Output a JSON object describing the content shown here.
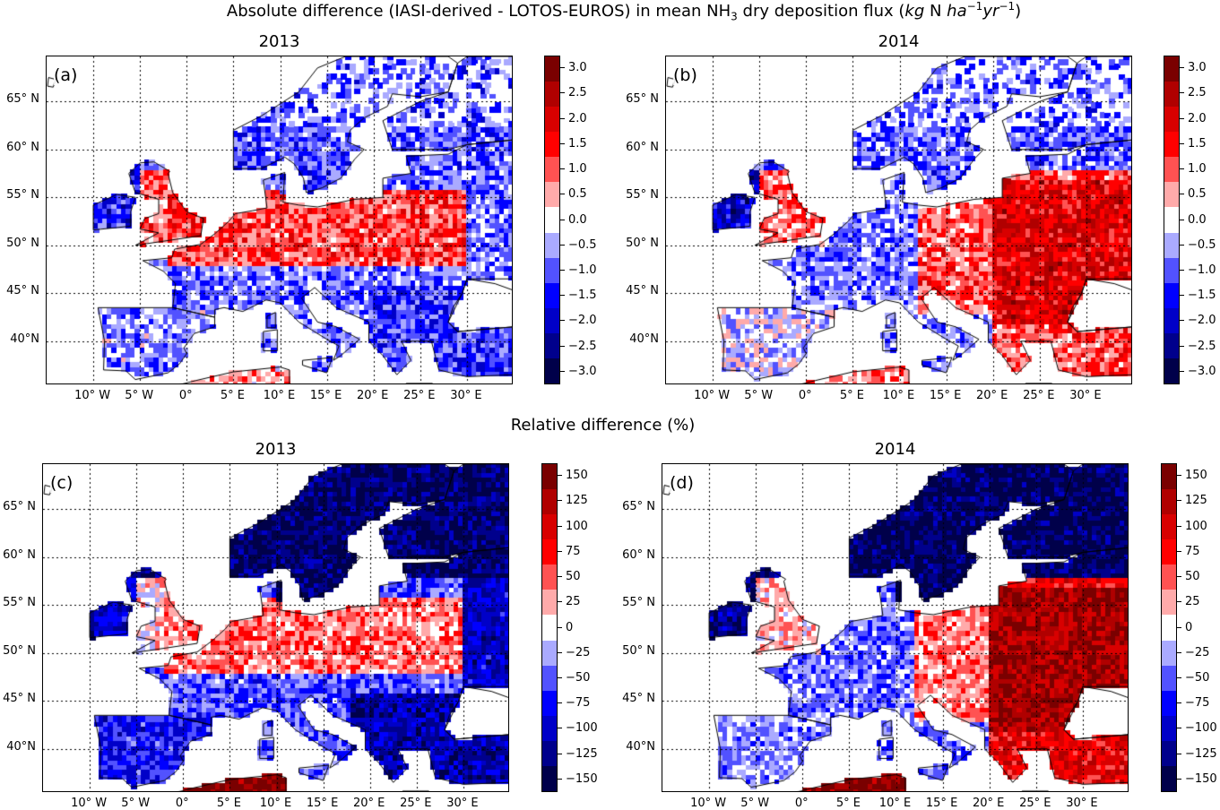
{
  "title": {
    "part1": "Absolute difference (IASI-derived - LOTOS-EUROS) in mean NH",
    "sub": "3",
    "part2": " dry  deposition flux (",
    "unit_kg": "kg",
    "unit_n": " N ",
    "unit_ha": "ha",
    "exp1": "−1",
    "unit_yr": "yr",
    "exp2": "−1",
    "close": ")"
  },
  "relative_title": "Relative difference (%)",
  "lat_labels": [
    "65° N",
    "60° N",
    "55° N",
    "50° N",
    "45° N",
    "40°N"
  ],
  "lon_labels": [
    "10° W",
    "5° W",
    "0°",
    "5° E",
    "10° E",
    "15° E",
    "20° E",
    "25° E",
    "30° E"
  ],
  "colorbar_colors": [
    "#7a0000",
    "#b00000",
    "#d80000",
    "#ff0000",
    "#ff5252",
    "#ffaaaa",
    "#ffffff",
    "#aaaaff",
    "#5252ff",
    "#0000ff",
    "#0000c8",
    "#00008c",
    "#00004a"
  ],
  "colorbar_abs_ticks": [
    "3.0",
    "2.5",
    "2.0",
    "1.5",
    "1.0",
    "0.5",
    "0.0",
    "−0.5",
    "−1.0",
    "−1.5",
    "−2.0",
    "−2.5",
    "−3.0"
  ],
  "colorbar_rel_ticks": [
    "150",
    "125",
    "100",
    "75",
    "50",
    "25",
    "0",
    "−25",
    "−50",
    "−75",
    "−100",
    "−125",
    "−150"
  ],
  "panels": [
    {
      "label": "(a)",
      "year": "2013",
      "kind": "abs"
    },
    {
      "label": "(b)",
      "year": "2014",
      "kind": "abs"
    },
    {
      "label": "(c)",
      "year": "2013",
      "kind": "rel"
    },
    {
      "label": "(d)",
      "year": "2014",
      "kind": "rel"
    }
  ]
}
